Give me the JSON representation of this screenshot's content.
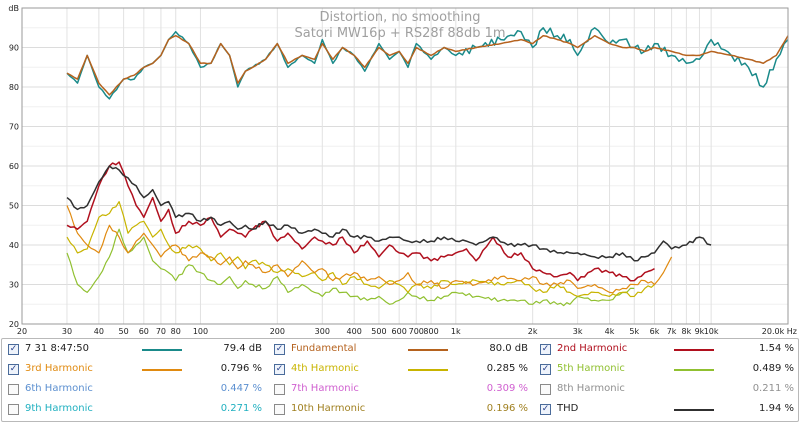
{
  "chart_data": {
    "type": "line",
    "title": "Distortion, no smoothing",
    "subtitle": "Satori MW16p + RS28f 88db 1m",
    "y_unit": "dB",
    "x_unit": "Hz",
    "x_scale": "log",
    "xlim": [
      20,
      20000
    ],
    "ylim": [
      20,
      100
    ],
    "grid": true,
    "x_ticks": [
      {
        "v": 20,
        "label": "20"
      },
      {
        "v": 30,
        "label": "30"
      },
      {
        "v": 40,
        "label": "40"
      },
      {
        "v": 50,
        "label": "50"
      },
      {
        "v": 60,
        "label": "60"
      },
      {
        "v": 70,
        "label": "70"
      },
      {
        "v": 80,
        "label": "80"
      },
      {
        "v": 100,
        "label": "100"
      },
      {
        "v": 200,
        "label": "200"
      },
      {
        "v": 300,
        "label": "300"
      },
      {
        "v": 400,
        "label": "400"
      },
      {
        "v": 500,
        "label": "500"
      },
      {
        "v": 600,
        "label": "600"
      },
      {
        "v": 700,
        "label": "700"
      },
      {
        "v": 800,
        "label": "800"
      },
      {
        "v": 1000,
        "label": "1k"
      },
      {
        "v": 2000,
        "label": "2k"
      },
      {
        "v": 3000,
        "label": "3k"
      },
      {
        "v": 4000,
        "label": "4k"
      },
      {
        "v": 5000,
        "label": "5k"
      },
      {
        "v": 6000,
        "label": "6k"
      },
      {
        "v": 7000,
        "label": "7k"
      },
      {
        "v": 8000,
        "label": "8k"
      },
      {
        "v": 9000,
        "label": "9k"
      },
      {
        "v": 10000,
        "label": "10k"
      },
      {
        "v": 20000,
        "label": "20.0k Hz"
      }
    ],
    "y_ticks": [
      {
        "v": 20,
        "label": "20"
      },
      {
        "v": 30,
        "label": "30"
      },
      {
        "v": 40,
        "label": "40"
      },
      {
        "v": 50,
        "label": "50"
      },
      {
        "v": 60,
        "label": "60"
      },
      {
        "v": 70,
        "label": "70"
      },
      {
        "v": 80,
        "label": "80"
      },
      {
        "v": 90,
        "label": "90"
      },
      {
        "v": 100,
        "label": "dB"
      }
    ],
    "series": [
      {
        "name": "7 31 8:47:50",
        "color": "#1a8a8a",
        "width": 1.5,
        "value": "79.4 dB",
        "x": [
          30,
          33,
          36,
          40,
          44,
          50,
          55,
          60,
          65,
          70,
          75,
          80,
          90,
          100,
          110,
          120,
          130,
          140,
          150,
          160,
          180,
          200,
          220,
          250,
          280,
          300,
          330,
          360,
          400,
          440,
          500,
          550,
          600,
          650,
          700,
          800,
          900,
          1000,
          1200,
          1500,
          1800,
          2000,
          2200,
          2500,
          2800,
          3000,
          3500,
          4000,
          4500,
          5000,
          5500,
          6000,
          7000,
          8000,
          9000,
          10000,
          12000,
          14000,
          16000,
          18000,
          20000
        ],
        "y": [
          83.5,
          81,
          88,
          80,
          77,
          82,
          82,
          85,
          86,
          88,
          92,
          94,
          91,
          85,
          86,
          91,
          88,
          80,
          84,
          85,
          87,
          91,
          85,
          88,
          86,
          92,
          86,
          90,
          88,
          84,
          91,
          87,
          89,
          85,
          91,
          87,
          90,
          88,
          90,
          92,
          94,
          90,
          95,
          93,
          92,
          88,
          95,
          91,
          92,
          90,
          89,
          91,
          88,
          86,
          87,
          92,
          88,
          85,
          80,
          87,
          92
        ]
      },
      {
        "name": "Fundamental",
        "color": "#b5621e",
        "width": 1.5,
        "value": "80.0 dB",
        "x": [
          30,
          33,
          36,
          40,
          44,
          50,
          55,
          60,
          65,
          70,
          75,
          80,
          90,
          100,
          110,
          120,
          130,
          140,
          150,
          160,
          180,
          200,
          220,
          250,
          280,
          300,
          330,
          360,
          400,
          440,
          500,
          550,
          600,
          650,
          700,
          800,
          900,
          1000,
          1200,
          1500,
          1800,
          2000,
          2200,
          2500,
          2800,
          3000,
          3500,
          4000,
          4500,
          5000,
          5500,
          6000,
          7000,
          8000,
          9000,
          10000,
          12000,
          14000,
          16000,
          18000,
          20000
        ],
        "y": [
          83.5,
          82,
          88,
          81,
          78,
          82,
          83,
          85,
          86,
          88,
          92,
          93,
          91,
          86,
          86,
          91,
          88,
          81,
          84,
          85,
          87,
          91,
          86,
          88,
          87,
          91,
          87,
          90,
          88,
          85,
          90,
          88,
          89,
          86,
          90,
          88,
          90,
          89,
          90,
          91,
          92,
          91,
          93,
          92,
          91,
          90,
          93,
          91,
          90,
          90,
          89,
          90,
          89,
          88,
          88,
          89,
          88,
          87,
          86,
          88,
          93
        ]
      },
      {
        "name": "2nd Harmonic",
        "color": "#b0101e",
        "width": 1.5,
        "value": "1.54 %",
        "x": [
          30,
          33,
          36,
          40,
          44,
          48,
          52,
          56,
          60,
          65,
          70,
          75,
          80,
          90,
          100,
          110,
          120,
          130,
          140,
          150,
          160,
          180,
          200,
          220,
          250,
          280,
          300,
          330,
          360,
          400,
          450,
          500,
          550,
          600,
          650,
          700,
          800,
          900,
          1000,
          1100,
          1200,
          1400,
          1600,
          1800,
          2000,
          2200,
          2500,
          2800,
          3000,
          3500,
          4000,
          4500,
          5000,
          5500,
          6000
        ],
        "y": [
          45,
          44,
          46,
          55,
          60,
          61,
          55,
          50,
          47,
          52,
          46,
          49,
          43,
          46,
          45,
          47,
          42,
          44,
          43,
          42,
          44,
          46,
          41,
          43,
          39,
          42,
          41,
          40,
          42,
          38,
          41,
          37,
          40,
          38,
          37,
          38,
          36,
          37,
          38,
          39,
          36,
          42,
          37,
          38,
          34,
          33,
          32,
          33,
          31,
          34,
          33,
          32,
          31,
          33,
          34
        ]
      },
      {
        "name": "3rd Harmonic",
        "color": "#e08a10",
        "width": 1.2,
        "value": "0.796 %",
        "x": [
          30,
          33,
          36,
          40,
          44,
          48,
          52,
          56,
          60,
          65,
          70,
          75,
          80,
          90,
          100,
          110,
          120,
          130,
          140,
          150,
          160,
          180,
          200,
          220,
          250,
          280,
          300,
          330,
          360,
          400,
          450,
          500,
          550,
          600,
          650,
          700,
          800,
          900,
          1000,
          1200,
          1500,
          1800,
          2000,
          2200,
          2500,
          2800,
          3000,
          3500,
          4000,
          4500,
          5000,
          5500,
          6000,
          6500,
          7000
        ],
        "y": [
          50,
          43,
          40,
          38,
          45,
          42,
          38,
          41,
          43,
          40,
          37,
          39,
          40,
          36,
          38,
          37,
          35,
          37,
          34,
          36,
          35,
          33,
          35,
          32,
          36,
          33,
          34,
          31,
          32,
          33,
          31,
          32,
          30,
          31,
          33,
          30,
          31,
          29,
          31,
          30,
          32,
          31,
          32,
          30,
          30,
          31,
          29,
          30,
          28,
          29,
          30,
          31,
          30,
          33,
          37
        ]
      },
      {
        "name": "4th Harmonic",
        "color": "#c8b400",
        "width": 1.2,
        "value": "0.285 %",
        "x": [
          30,
          33,
          36,
          40,
          44,
          48,
          52,
          56,
          60,
          65,
          70,
          75,
          80,
          90,
          100,
          110,
          120,
          130,
          140,
          150,
          160,
          180,
          200,
          220,
          250,
          280,
          300,
          330,
          360,
          400,
          450,
          500,
          550,
          600,
          650,
          700,
          800,
          900,
          1000,
          1200,
          1500,
          1800,
          2000,
          2200,
          2500,
          2800,
          3000,
          3500,
          4000,
          4500,
          5000,
          5500,
          6000
        ],
        "y": [
          42,
          38,
          39,
          47,
          48,
          51,
          43,
          45,
          46,
          42,
          44,
          40,
          38,
          40,
          39,
          36,
          38,
          35,
          37,
          34,
          36,
          35,
          33,
          34,
          32,
          33,
          31,
          33,
          30,
          32,
          30,
          29,
          31,
          30,
          28,
          30,
          29,
          31,
          30,
          31,
          30,
          31,
          29,
          28,
          30,
          28,
          27,
          28,
          27,
          28,
          27,
          29,
          30
        ]
      },
      {
        "name": "5th Harmonic",
        "color": "#90c030",
        "width": 1.2,
        "value": "0.489 %",
        "x": [
          30,
          33,
          36,
          40,
          44,
          48,
          52,
          56,
          60,
          65,
          70,
          75,
          80,
          90,
          100,
          110,
          120,
          130,
          140,
          150,
          160,
          180,
          200,
          220,
          250,
          280,
          300,
          330,
          360,
          400,
          450,
          500,
          550,
          600,
          650,
          700,
          800,
          900,
          1000,
          1200,
          1500,
          1800,
          2000,
          2200,
          2500,
          2800,
          3000,
          3500,
          4000,
          4500,
          5000
        ],
        "y": [
          38,
          30,
          28,
          32,
          37,
          44,
          38,
          40,
          42,
          36,
          34,
          33,
          31,
          35,
          33,
          31,
          30,
          32,
          29,
          31,
          30,
          29,
          32,
          28,
          30,
          28,
          27,
          29,
          28,
          27,
          26,
          27,
          25,
          26,
          28,
          27,
          26,
          27,
          28,
          27,
          26,
          26,
          25,
          26,
          25,
          25,
          27,
          26,
          26,
          28,
          29
        ]
      },
      {
        "name": "6th Harmonic",
        "color": "#5b8fd0",
        "width": 1,
        "value": "0.447 %",
        "x": [],
        "y": []
      },
      {
        "name": "7th Harmonic",
        "color": "#d060d0",
        "width": 1,
        "value": "0.309 %",
        "x": [],
        "y": []
      },
      {
        "name": "8th Harmonic",
        "color": "#909090",
        "width": 1,
        "value": "0.211 %",
        "x": [],
        "y": []
      },
      {
        "name": "9th Harmonic",
        "color": "#20b0c0",
        "width": 1,
        "value": "0.271 %",
        "x": [],
        "y": []
      },
      {
        "name": "10th Harmonic",
        "color": "#a08020",
        "width": 1,
        "value": "0.196 %",
        "x": [],
        "y": []
      },
      {
        "name": "THD",
        "color": "#303030",
        "width": 1.5,
        "value": "1.94 %",
        "x": [
          30,
          33,
          36,
          40,
          44,
          48,
          52,
          56,
          60,
          65,
          70,
          75,
          80,
          90,
          100,
          110,
          120,
          130,
          140,
          150,
          160,
          180,
          200,
          220,
          250,
          280,
          300,
          330,
          360,
          400,
          450,
          500,
          550,
          600,
          650,
          700,
          800,
          900,
          1000,
          1100,
          1200,
          1400,
          1600,
          1800,
          2000,
          2200,
          2500,
          2800,
          3000,
          3500,
          4000,
          4500,
          5000,
          5500,
          6000,
          6500,
          7000,
          8000,
          9000,
          10000
        ],
        "y": [
          52,
          49,
          50,
          56,
          60,
          59,
          57,
          55,
          52,
          54,
          50,
          51,
          47,
          48,
          46,
          47,
          45,
          46,
          44,
          45,
          44,
          46,
          44,
          45,
          43,
          44,
          43,
          42,
          44,
          42,
          42,
          41,
          42,
          42,
          41,
          41,
          41,
          42,
          41,
          41,
          40,
          42,
          40,
          40,
          40,
          39,
          38,
          38,
          38,
          37,
          37,
          38,
          36,
          37,
          38,
          41,
          39,
          40,
          42,
          40
        ]
      }
    ]
  },
  "legend": {
    "items": [
      {
        "label": "7 31 8:47:50",
        "checked": true,
        "color": "#1a8a8a",
        "value": "79.4 dB",
        "label_color": "#222222"
      },
      {
        "label": "Fundamental",
        "checked": true,
        "color": "#b5621e",
        "value": "80.0 dB",
        "label_color": "#b5621e"
      },
      {
        "label": "2nd Harmonic",
        "checked": true,
        "color": "#b0101e",
        "value": "1.54 %",
        "label_color": "#b0101e"
      },
      {
        "label": "3rd Harmonic",
        "checked": true,
        "color": "#e08a10",
        "value": "0.796 %",
        "label_color": "#e08a10"
      },
      {
        "label": "4th Harmonic",
        "checked": true,
        "color": "#c8b400",
        "value": "0.285 %",
        "label_color": "#c8b400"
      },
      {
        "label": "5th Harmonic",
        "checked": true,
        "color": "#90c030",
        "value": "0.489 %",
        "label_color": "#90c030"
      },
      {
        "label": "6th Harmonic",
        "checked": false,
        "color": "#5b8fd0",
        "value": "0.447 %",
        "label_color": "#5b8fd0"
      },
      {
        "label": "7th Harmonic",
        "checked": false,
        "color": "#d060d0",
        "value": "0.309 %",
        "label_color": "#d060d0"
      },
      {
        "label": "8th Harmonic",
        "checked": false,
        "color": "#909090",
        "value": "0.211 %",
        "label_color": "#909090"
      },
      {
        "label": "9th Harmonic",
        "checked": false,
        "color": "#20b0c0",
        "value": "0.271 %",
        "label_color": "#20b0c0"
      },
      {
        "label": "10th Harmonic",
        "checked": false,
        "color": "#a08020",
        "value": "0.196 %",
        "label_color": "#a08020"
      },
      {
        "label": "THD",
        "checked": true,
        "color": "#303030",
        "value": "1.94 %",
        "label_color": "#222222"
      }
    ]
  }
}
